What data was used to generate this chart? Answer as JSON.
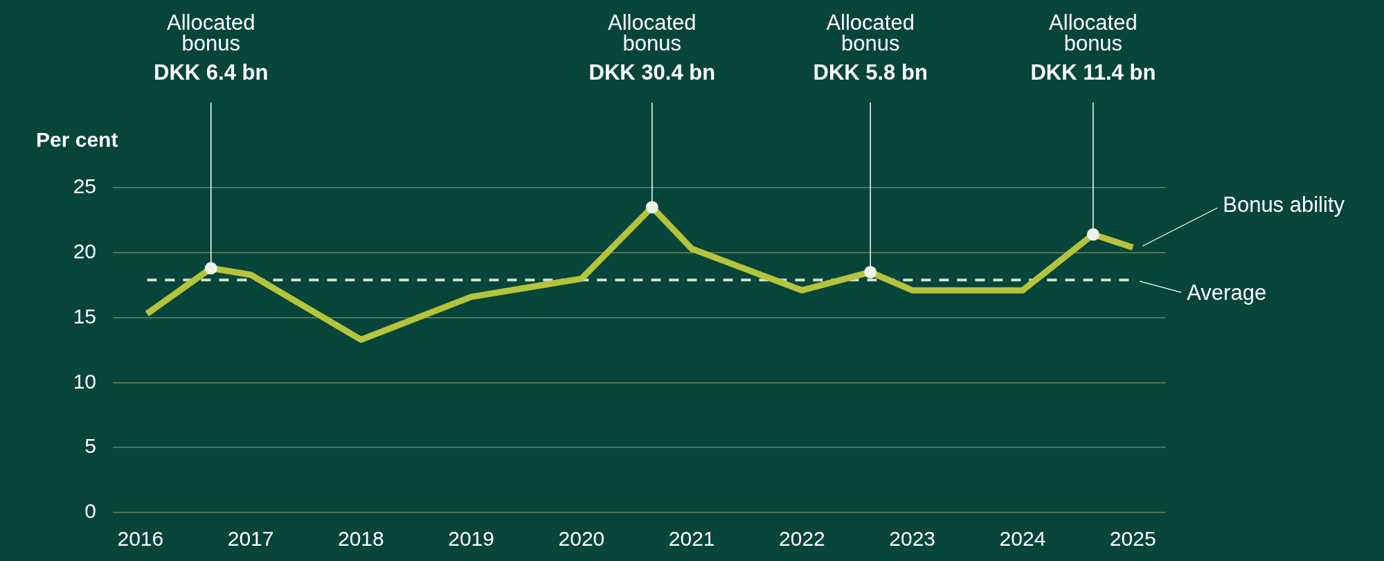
{
  "chart_data": {
    "type": "line",
    "ylabel": "Per cent",
    "x": [
      2016.06,
      2016.64,
      2017,
      2018,
      2019,
      2020,
      2020.64,
      2021,
      2022,
      2022.62,
      2023,
      2024,
      2024.64,
      2025
    ],
    "series": [
      {
        "name": "Bonus ability",
        "color": "#b5c43c",
        "values": [
          15.3,
          18.8,
          18.3,
          13.3,
          16.6,
          18.0,
          23.5,
          20.3,
          17.1,
          18.5,
          17.1,
          17.1,
          21.4,
          20.4
        ]
      }
    ],
    "xlim": [
      2015.75,
      2025.3
    ],
    "xticks": [
      2016,
      2017,
      2018,
      2019,
      2020,
      2021,
      2022,
      2023,
      2024,
      2025
    ],
    "ylim": [
      0,
      25
    ],
    "yticks": [
      0,
      5,
      10,
      15,
      20,
      25
    ],
    "grid": "y",
    "legend": false,
    "marker": "none",
    "line_style": "solid",
    "ref_lines": [
      {
        "axis": "y",
        "value": 17.9,
        "label": "Average",
        "color": "#cfe3c8",
        "line_style": "dashed"
      }
    ],
    "annotations": [
      {
        "text": "Allocated\nbonus\nDKK 6.4 bn",
        "x": 2016.64,
        "y": 18.8
      },
      {
        "text": "Allocated\nbonus\nDKK 30.4 bn",
        "x": 2020.64,
        "y": 23.5
      },
      {
        "text": "Allocated\nbonus\nDKK 5.8 bn",
        "x": 2022.62,
        "y": 18.5
      },
      {
        "text": "Allocated\nbonus\nDKK 11.4 bn",
        "x": 2024.64,
        "y": 21.4
      }
    ]
  }
}
